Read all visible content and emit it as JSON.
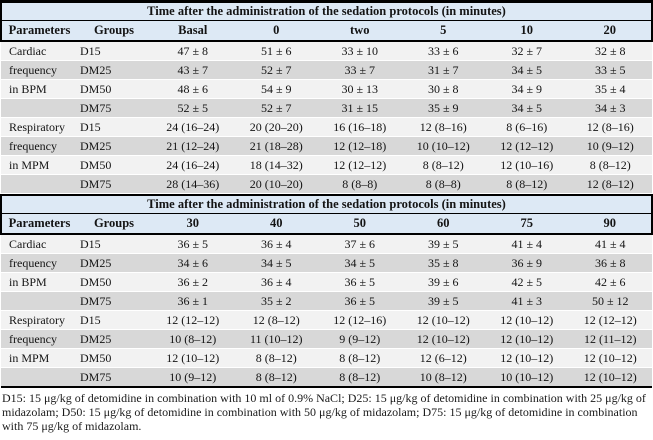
{
  "colors": {
    "header_band": "#dde9f5",
    "stripe_light": "#f2f2f2",
    "stripe_dark": "#d8d8d8",
    "border": "#000000"
  },
  "table": {
    "sections": [
      {
        "title": "Time after the administration of the sedation protocols (in minutes)",
        "col_headers": [
          "Parameters",
          "Groups",
          "Basal",
          "0",
          "two",
          "5",
          "10",
          "20"
        ],
        "rows": [
          {
            "parameter": "Cardiac",
            "group": "D15",
            "values": [
              "47 ± 8",
              "51 ± 6",
              "33 ± 10",
              "33 ± 6",
              "32 ± 7",
              "32 ± 8"
            ]
          },
          {
            "parameter": "frequency",
            "group": "DM25",
            "values": [
              "43 ± 7",
              "52 ± 7",
              "33 ± 7",
              "31 ± 7",
              "34 ± 5",
              "33 ± 5"
            ]
          },
          {
            "parameter": "in BPM",
            "group": "DM50",
            "values": [
              "48 ± 6",
              "54 ± 9",
              "30 ± 13",
              "30 ± 8",
              "34 ± 9",
              "35 ± 4"
            ]
          },
          {
            "parameter": "",
            "group": "DM75",
            "values": [
              "52 ± 5",
              "52 ± 7",
              "31 ± 15",
              "35 ± 9",
              "34 ± 5",
              "34 ± 3"
            ]
          },
          {
            "parameter": "Respiratory",
            "group": "D15",
            "values": [
              "24 (16–24)",
              "20 (20–20)",
              "16 (16–18)",
              "12 (8–16)",
              "8 (6–16)",
              "12 (8–16)"
            ]
          },
          {
            "parameter": "frequency",
            "group": "DM25",
            "values": [
              "21 (12–24)",
              "21 (18–28)",
              "12 (12–18)",
              "10 (10–12)",
              "12 (12–12)",
              "10 (9–12)"
            ]
          },
          {
            "parameter": "in MPM",
            "group": "DM50",
            "values": [
              "24 (16–24)",
              "18 (14–32)",
              "12 (12–12)",
              "8 (8–12)",
              "12 (10–16)",
              "8 (8–12)"
            ]
          },
          {
            "parameter": "",
            "group": "DM75",
            "values": [
              "28 (14–36)",
              "20 (10–20)",
              "8 (8–8)",
              "8 (8–8)",
              "8 (8–12)",
              "12 (8–12)"
            ]
          }
        ]
      },
      {
        "title": "Time after the administration of the sedation protocols (in minutes)",
        "col_headers": [
          "Parameters",
          "Groups",
          "30",
          "40",
          "50",
          "60",
          "75",
          "90"
        ],
        "rows": [
          {
            "parameter": "Cardiac",
            "group": "D15",
            "values": [
              "36 ± 5",
              "36 ± 4",
              "37 ± 6",
              "39 ± 5",
              "41 ± 4",
              "41 ± 4"
            ]
          },
          {
            "parameter": "frequency",
            "group": "DM25",
            "values": [
              "34 ± 6",
              "34 ± 5",
              "34 ± 5",
              "35 ± 8",
              "36 ± 9",
              "36 ± 8"
            ]
          },
          {
            "parameter": "in BPM",
            "group": "DM50",
            "values": [
              "36 ± 2",
              "36 ± 4",
              "36 ± 5",
              "39 ± 6",
              "42 ± 5",
              "42 ± 6"
            ]
          },
          {
            "parameter": "",
            "group": "DM75",
            "values": [
              "36 ± 1",
              "35 ± 2",
              "36 ± 5",
              "39 ± 5",
              "41 ± 3",
              "50 ± 12"
            ]
          },
          {
            "parameter": "Respiratory",
            "group": "D15",
            "values": [
              "12 (12–12)",
              "12 (8–12)",
              "12 (12–16)",
              "12 (10–12)",
              "12 (10–12)",
              "12 (12–12)"
            ]
          },
          {
            "parameter": "frequency",
            "group": "DM25",
            "values": [
              "10 (8–12)",
              "11 (10–12)",
              "9 (9–12)",
              "12 (10–12)",
              "12 (10–12)",
              "12 (11–12)"
            ]
          },
          {
            "parameter": "in MPM",
            "group": "DM50",
            "values": [
              "12 (10–12)",
              "8 (8–12)",
              "8 (8–12)",
              "12 (6–12)",
              "12 (10–12)",
              "12 (10–12)"
            ]
          },
          {
            "parameter": "",
            "group": "DM75",
            "values": [
              "10 (9–12)",
              "8 (8–12)",
              "8 (8–12)",
              "10 (8–12)",
              "10 (10–12)",
              "12 (10–12)"
            ]
          }
        ]
      }
    ],
    "footnote": "D15: 15 μg/kg of detomidine in combination with 10 ml of 0.9% NaCl; D25: 15 μg/kg of detomidine in combination with 25 μg/kg of midazolam; D50: 15 μg/kg of detomidine in combination with 50 μg/kg of midazolam; D75: 15 μg/kg of detomidine in combination with 75 μg/kg of midazolam."
  }
}
